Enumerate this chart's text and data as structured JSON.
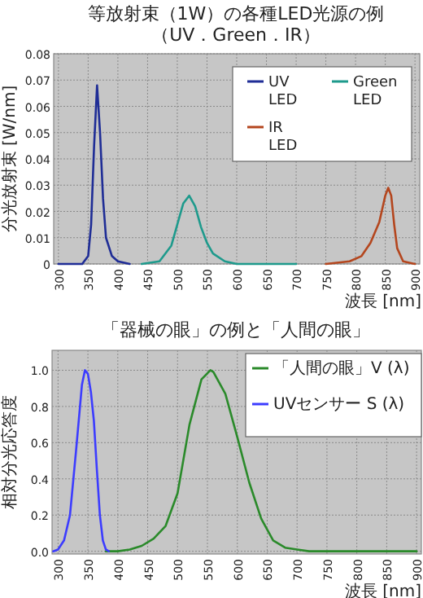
{
  "chart_data": [
    {
      "type": "line",
      "title": "等放射束（1W）の各種LED光源の例",
      "subtitle": "（UV．Green．IR）",
      "xlabel": "波長 [nm]",
      "ylabel": "分光放射束 [W/nm]",
      "xlim": [
        292,
        908
      ],
      "ylim": [
        0,
        0.08
      ],
      "xticks": [
        300,
        350,
        400,
        450,
        500,
        550,
        600,
        650,
        700,
        750,
        800,
        850,
        900
      ],
      "yticks": [
        0,
        0.01,
        0.02,
        0.03,
        0.04,
        0.05,
        0.06,
        0.07,
        0.08
      ],
      "grid": true,
      "legend": "top right",
      "marker": "none",
      "line_style": "solid",
      "series": [
        {
          "name": "UV LED",
          "color": "#1f2d96",
          "x": [
            300,
            340,
            350,
            355,
            360,
            365,
            370,
            375,
            380,
            390,
            400,
            420
          ],
          "values": [
            0,
            0,
            0.003,
            0.015,
            0.045,
            0.068,
            0.05,
            0.025,
            0.01,
            0.003,
            0.001,
            0
          ]
        },
        {
          "name": "Green LED",
          "color": "#1e9a8c",
          "x": [
            440,
            470,
            490,
            500,
            510,
            520,
            530,
            540,
            550,
            560,
            580,
            600,
            700
          ],
          "values": [
            0,
            0.001,
            0.007,
            0.015,
            0.023,
            0.026,
            0.022,
            0.014,
            0.008,
            0.004,
            0.001,
            0,
            0
          ]
        },
        {
          "name": "IR LED",
          "color": "#b4461e",
          "x": [
            750,
            790,
            810,
            825,
            840,
            850,
            855,
            860,
            865,
            870,
            880,
            900
          ],
          "values": [
            0,
            0.001,
            0.003,
            0.008,
            0.016,
            0.026,
            0.029,
            0.026,
            0.015,
            0.006,
            0.001,
            0
          ]
        }
      ]
    },
    {
      "type": "line",
      "title": "「器械の眼」の例と「人間の眼」",
      "xlabel": "波長 [nm]",
      "ylabel": "相対分光応答度",
      "xlim": [
        290,
        908
      ],
      "ylim": [
        -0.015,
        1.11
      ],
      "xticks": [
        300,
        350,
        400,
        450,
        500,
        550,
        600,
        650,
        700,
        750,
        800,
        850,
        900
      ],
      "yticks": [
        {
          "value": 0,
          "label": "0.0"
        },
        {
          "value": 0.2,
          "label": "0.2"
        },
        {
          "value": 0.4,
          "label": "0.4"
        },
        {
          "value": 0.6,
          "label": "0.6"
        },
        {
          "value": 0.8,
          "label": "0.8"
        },
        {
          "value": 1,
          "label": "1.0"
        }
      ],
      "grid": true,
      "legend": "top right",
      "marker": "none",
      "line_style": "solid",
      "series": [
        {
          "name": "「人間の眼」V (λ)",
          "color": "#2a8a2a",
          "x": [
            380,
            400,
            420,
            440,
            460,
            480,
            500,
            520,
            540,
            555,
            560,
            580,
            600,
            620,
            640,
            660,
            680,
            700,
            720,
            750,
            900
          ],
          "values": [
            0,
            0,
            0.01,
            0.03,
            0.07,
            0.14,
            0.32,
            0.7,
            0.95,
            1.0,
            0.99,
            0.87,
            0.63,
            0.38,
            0.18,
            0.06,
            0.02,
            0.01,
            0,
            0,
            0
          ]
        },
        {
          "name": "UVセンサー S (λ)",
          "color": "#3c3cff",
          "x": [
            292,
            300,
            310,
            320,
            330,
            340,
            345,
            350,
            355,
            360,
            365,
            370,
            375,
            380,
            385
          ],
          "values": [
            0,
            0.01,
            0.06,
            0.2,
            0.55,
            0.92,
            1.0,
            0.98,
            0.88,
            0.72,
            0.45,
            0.2,
            0.06,
            0.01,
            0
          ]
        }
      ]
    }
  ]
}
